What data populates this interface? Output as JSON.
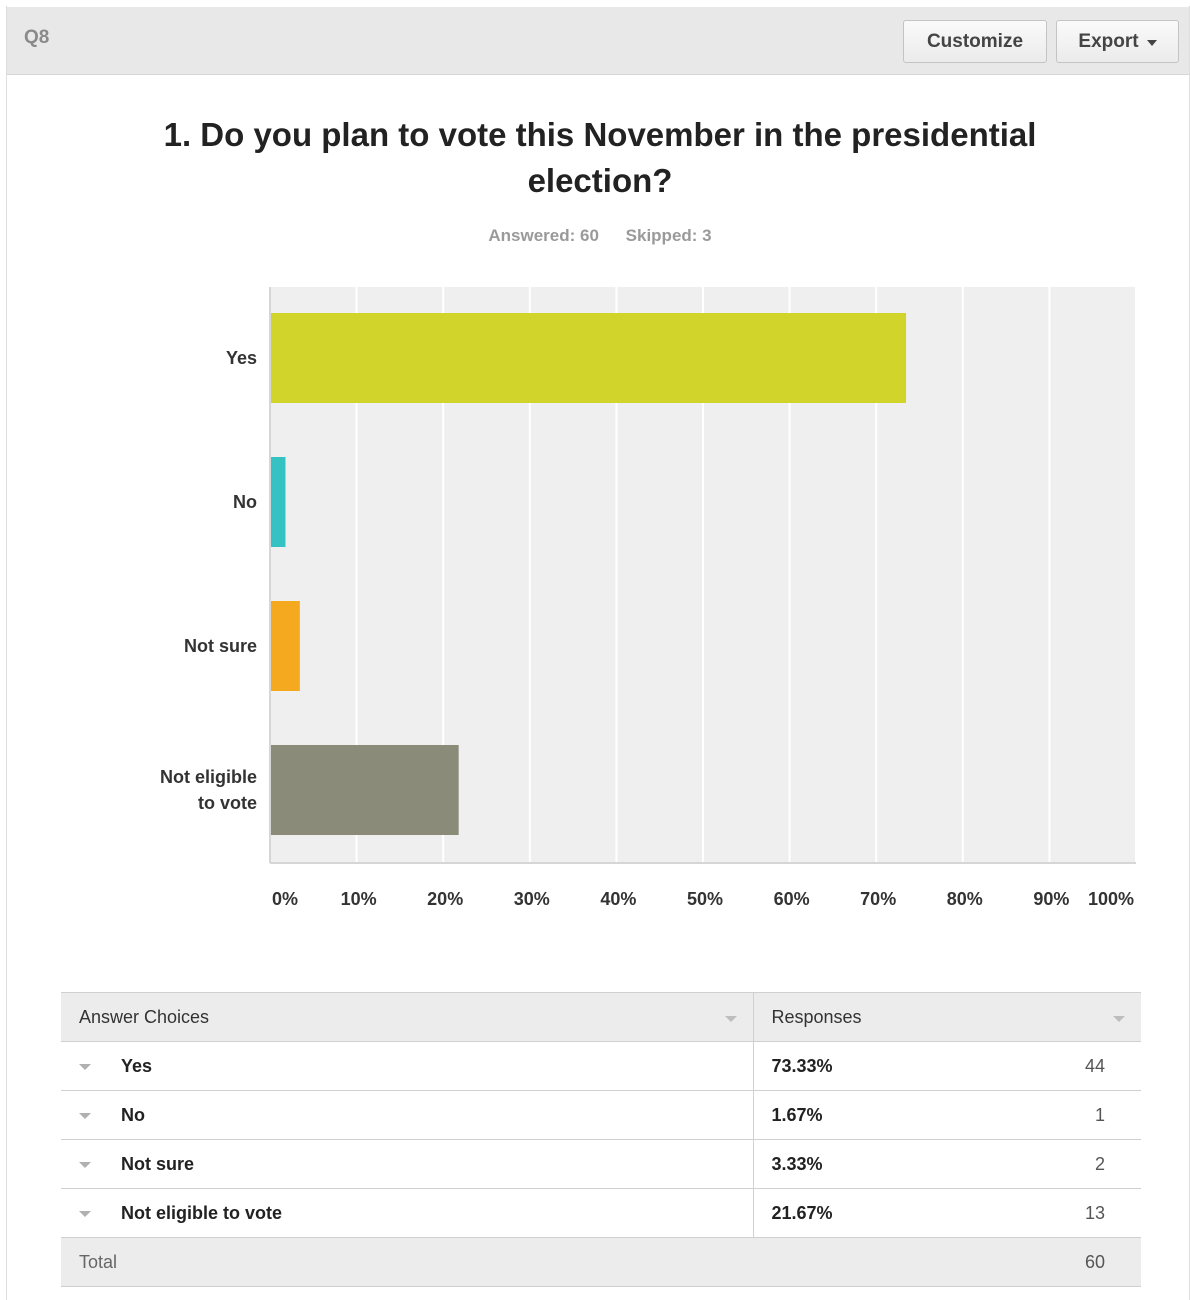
{
  "header": {
    "question_number": "Q8",
    "customize_label": "Customize",
    "export_label": "Export"
  },
  "question": {
    "title": "1. Do you plan to vote this November in the presidential election?",
    "answered": "Answered: 60",
    "skipped": "Skipped: 3"
  },
  "colors": {
    "grid_bg": "#efefef",
    "bar_yes": "#d1d42a",
    "bar_no": "#35c2c2",
    "bar_not_sure": "#f5a91f",
    "bar_not_eligible": "#8a8b79"
  },
  "chart_data": {
    "type": "bar",
    "orientation": "horizontal",
    "categories": [
      "Yes",
      "No",
      "Not sure",
      "Not eligible to vote"
    ],
    "category_lines": [
      [
        "Yes"
      ],
      [
        "No"
      ],
      [
        "Not sure"
      ],
      [
        "Not eligible",
        "to vote"
      ]
    ],
    "values": [
      73.33,
      1.67,
      3.33,
      21.67
    ],
    "colors": [
      "#d1d42a",
      "#35c2c2",
      "#f5a91f",
      "#8a8b79"
    ],
    "xlim": [
      0,
      100
    ],
    "ticks": [
      "0%",
      "10%",
      "20%",
      "30%",
      "40%",
      "50%",
      "60%",
      "70%",
      "80%",
      "90%",
      "100%"
    ],
    "grid": true,
    "title": "1. Do you plan to vote this November in the presidential election?",
    "xlabel": "",
    "ylabel": ""
  },
  "table": {
    "headers": [
      "Answer Choices",
      "Responses"
    ],
    "rows": [
      {
        "choice": "Yes",
        "percent": "73.33%",
        "count": "44"
      },
      {
        "choice": "No",
        "percent": "1.67%",
        "count": "1"
      },
      {
        "choice": "Not sure",
        "percent": "3.33%",
        "count": "2"
      },
      {
        "choice": "Not eligible to vote",
        "percent": "21.67%",
        "count": "13"
      }
    ],
    "total_label": "Total",
    "total_value": "60"
  }
}
